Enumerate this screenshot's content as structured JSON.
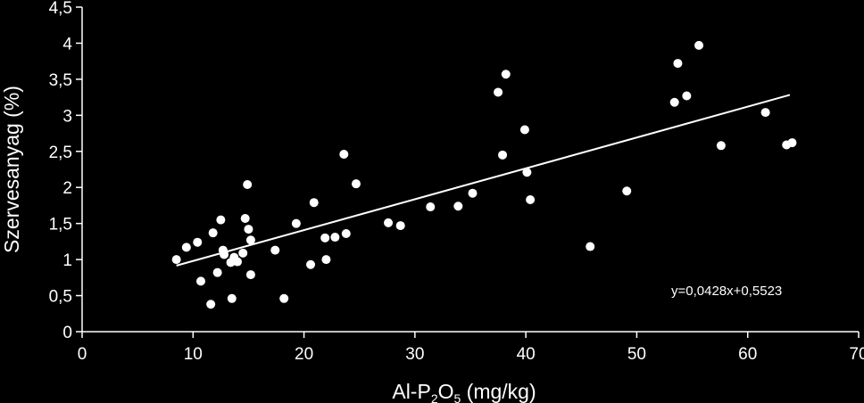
{
  "chart_data": {
    "type": "scatter",
    "title": "",
    "xlabel": "Al-P₂O₅ (mg/kg)",
    "xlabel_parts": {
      "pre": "Al-P",
      "sub1": "2",
      "mid": "O",
      "sub2": "5",
      "post": " (mg/kg)"
    },
    "ylabel": "Szervesanyag (%)",
    "xlim": [
      0,
      70
    ],
    "ylim": [
      0,
      4.5
    ],
    "x_ticks": [
      0,
      10,
      20,
      30,
      40,
      50,
      60,
      70
    ],
    "x_tick_labels": [
      "0",
      "10",
      "20",
      "30",
      "40",
      "50",
      "60",
      "70"
    ],
    "y_ticks": [
      0,
      0.5,
      1,
      1.5,
      2,
      2.5,
      3,
      3.5,
      4,
      4.5
    ],
    "y_tick_labels": [
      "0",
      "0,5",
      "1",
      "1,5",
      "2",
      "2,5",
      "3",
      "3,5",
      "4",
      "4,5"
    ],
    "grid": false,
    "legend": "none",
    "colors": {
      "background": "#000000",
      "points": "#ffffff",
      "axes": "#ffffff",
      "trendline": "#ffffff"
    },
    "trendline": {
      "type": "linear",
      "slope": 0.0428,
      "intercept": 0.5523,
      "x_range": [
        8.5,
        63.8
      ],
      "equation_label": "y=0,0428x+0,5523"
    },
    "series": [
      {
        "points": [
          [
            8.5,
            1.0
          ],
          [
            9.4,
            1.17
          ],
          [
            10.4,
            1.24
          ],
          [
            10.7,
            0.7
          ],
          [
            11.6,
            0.38
          ],
          [
            11.8,
            1.37
          ],
          [
            12.2,
            0.82
          ],
          [
            12.5,
            1.55
          ],
          [
            12.7,
            1.13
          ],
          [
            12.8,
            1.07
          ],
          [
            13.4,
            0.96
          ],
          [
            13.5,
            0.46
          ],
          [
            13.7,
            1.03
          ],
          [
            14.0,
            0.97
          ],
          [
            14.5,
            1.09
          ],
          [
            14.7,
            1.57
          ],
          [
            14.9,
            2.04
          ],
          [
            15.0,
            1.42
          ],
          [
            15.2,
            1.27
          ],
          [
            15.2,
            0.79
          ],
          [
            17.4,
            1.13
          ],
          [
            18.2,
            0.46
          ],
          [
            19.3,
            1.5
          ],
          [
            20.6,
            0.93
          ],
          [
            20.9,
            1.79
          ],
          [
            21.9,
            1.3
          ],
          [
            22.0,
            1.0
          ],
          [
            22.8,
            1.31
          ],
          [
            23.6,
            2.46
          ],
          [
            23.8,
            1.36
          ],
          [
            24.7,
            2.05
          ],
          [
            27.6,
            1.51
          ],
          [
            28.7,
            1.47
          ],
          [
            31.4,
            1.73
          ],
          [
            33.9,
            1.74
          ],
          [
            35.2,
            1.92
          ],
          [
            37.5,
            3.32
          ],
          [
            37.9,
            2.45
          ],
          [
            38.2,
            3.57
          ],
          [
            39.9,
            2.8
          ],
          [
            40.1,
            2.21
          ],
          [
            40.4,
            1.83
          ],
          [
            45.8,
            1.18
          ],
          [
            49.1,
            1.95
          ],
          [
            53.4,
            3.18
          ],
          [
            53.7,
            3.72
          ],
          [
            54.5,
            3.27
          ],
          [
            55.6,
            3.97
          ],
          [
            57.6,
            2.58
          ],
          [
            61.6,
            3.04
          ],
          [
            63.5,
            2.59
          ],
          [
            64.0,
            2.62
          ]
        ]
      }
    ]
  }
}
